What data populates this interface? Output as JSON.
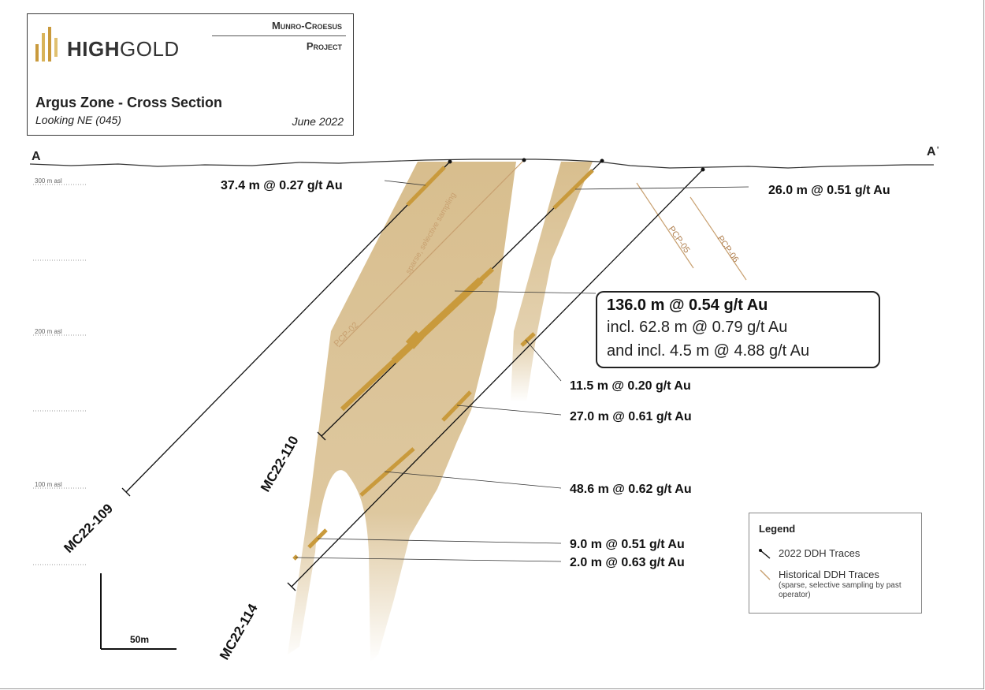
{
  "header": {
    "logo_bold": "HIGH",
    "logo_light": "GOLD",
    "project_line1": "Munro-Croesus",
    "project_line2": "Project",
    "title": "Argus Zone - Cross Section",
    "subtitle": "Looking NE (045)",
    "date": "June 2022"
  },
  "section": {
    "start_label": "A",
    "end_label": "Aˈ"
  },
  "elevations": [
    "300 m asl",
    "200 m asl",
    "100 m asl"
  ],
  "holes": {
    "mc22_109": "MC22-109",
    "mc22_110": "MC22-110",
    "mc22_114": "MC22-114",
    "pcp_02": "PCP-02",
    "pcp_05": "PCP-05",
    "pcp_06": "PCP-06",
    "pcp_02_note": "sparse, selective sampling"
  },
  "intercepts": {
    "i109": "37.4 m @ 0.27 g/t Au",
    "i110a": "26.0 m @ 0.51 g/t Au",
    "i114a": "11.5 m @ 0.20 g/t Au",
    "i114b": "27.0 m @ 0.61 g/t Au",
    "i114c": "48.6 m @ 0.62 g/t Au",
    "i114d": "9.0 m @ 0.51 g/t Au",
    "i114e": "2.0 m @ 0.63 g/t Au"
  },
  "callout": {
    "line1": "136.0 m @ 0.54 g/t Au",
    "line2": "incl. 62.8 m @ 0.79 g/t Au",
    "line3": "and incl. 4.5 m @ 4.88 g/t Au"
  },
  "scale_bar": "50m",
  "legend": {
    "title": "Legend",
    "item1": "2022 DDH Traces",
    "item2": "Historical DDH Traces",
    "item2_note": "(sparse, selective sampling by past operator)"
  },
  "colors": {
    "mineral_zone": "#d8be8e",
    "intercept": "#c99a3c",
    "historical": "#c8a070",
    "drill": "#111111"
  }
}
